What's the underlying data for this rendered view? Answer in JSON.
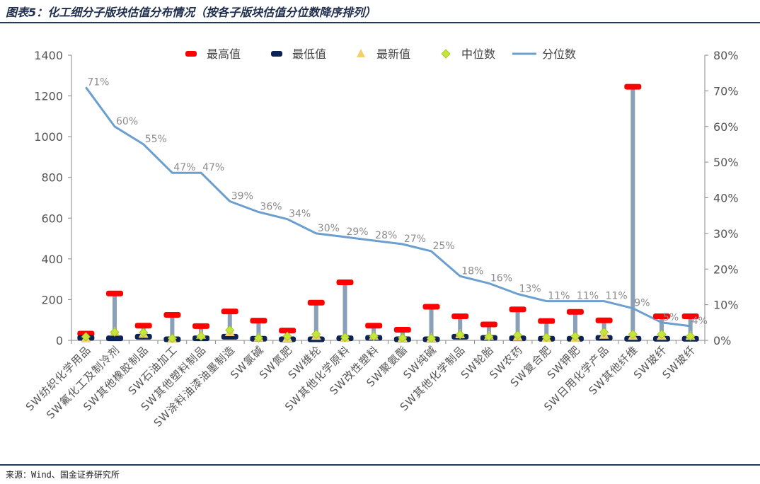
{
  "header": {
    "title": "图表5：化工细分子版块估值分布情况（按各子版块估值分位数降序排列）"
  },
  "footer": {
    "source": "来源：Wind、国金证券研究所"
  },
  "colors": {
    "max": "#ff0000",
    "min": "#0d2355",
    "latest": "#f2d06b",
    "median": "#c4e63a",
    "percentile": "#6a9fd0",
    "range_bar": "#8a9fb8",
    "axis_text": "#555555"
  },
  "chart_data": {
    "type": "line",
    "categories": [
      "SW纺织化学用品",
      "SW氟化工及制冷剂",
      "SW其他橡胶制品",
      "SW石油加工",
      "SW其他塑料制品",
      "SW涂料油漆油墨制造",
      "SW氯碱",
      "SW氮肥",
      "SW维纶",
      "SW其他化学原料",
      "SW改性塑料",
      "SW聚氨酯",
      "SW纯碱",
      "SW其他化学制品",
      "SW轮胎",
      "SW农药",
      "SW复合肥",
      "SW钾肥",
      "SW日用化学产品",
      "SW其他纤维",
      "SW玻纤",
      "SW玻纤"
    ],
    "series": [
      {
        "name": "最高值",
        "marker": "dash",
        "axis": "left",
        "values": [
          33,
          230,
          72,
          125,
          70,
          142,
          97,
          48,
          185,
          285,
          72,
          52,
          165,
          118,
          78,
          152,
          95,
          140,
          98,
          1245,
          118,
          118
        ]
      },
      {
        "name": "最低值",
        "marker": "dash",
        "axis": "left",
        "values": [
          12,
          10,
          18,
          5,
          10,
          18,
          8,
          5,
          5,
          10,
          12,
          5,
          5,
          18,
          12,
          10,
          8,
          8,
          12,
          8,
          8,
          8
        ]
      },
      {
        "name": "最新值",
        "marker": "triangle",
        "axis": "left",
        "values": [
          8,
          40,
          30,
          5,
          25,
          38,
          12,
          10,
          20,
          10,
          20,
          10,
          10,
          28,
          20,
          15,
          10,
          10,
          25,
          20,
          20,
          20
        ]
      },
      {
        "name": "中位数",
        "marker": "diamond",
        "axis": "left",
        "values": [
          18,
          40,
          38,
          10,
          20,
          50,
          12,
          20,
          30,
          15,
          20,
          12,
          10,
          28,
          18,
          25,
          15,
          20,
          40,
          30,
          30,
          20
        ]
      },
      {
        "name": "分位数",
        "marker": "line",
        "axis": "right",
        "values": [
          71,
          60,
          55,
          47,
          47,
          39,
          36,
          34,
          30,
          29,
          28,
          27,
          25,
          18,
          16,
          13,
          11,
          11,
          11,
          9,
          5,
          4
        ]
      }
    ],
    "percent_labels": [
      "71%",
      "60%",
      "55%",
      "47%",
      "47%",
      "39%",
      "36%",
      "34%",
      "30%",
      "29%",
      "28%",
      "27%",
      "25%",
      "18%",
      "16%",
      "13%",
      "11%",
      "11%",
      "11%",
      "9%",
      "5%",
      "4%"
    ],
    "y_left": {
      "min": 0,
      "max": 1400,
      "ticks": [
        "0",
        "200",
        "400",
        "600",
        "800",
        "1000",
        "1200",
        "1400"
      ]
    },
    "y_right": {
      "min": 0,
      "max": 80,
      "ticks": [
        "0%",
        "10%",
        "20%",
        "30%",
        "40%",
        "50%",
        "60%",
        "70%",
        "80%"
      ]
    },
    "legend_position": "top",
    "grid": false
  }
}
